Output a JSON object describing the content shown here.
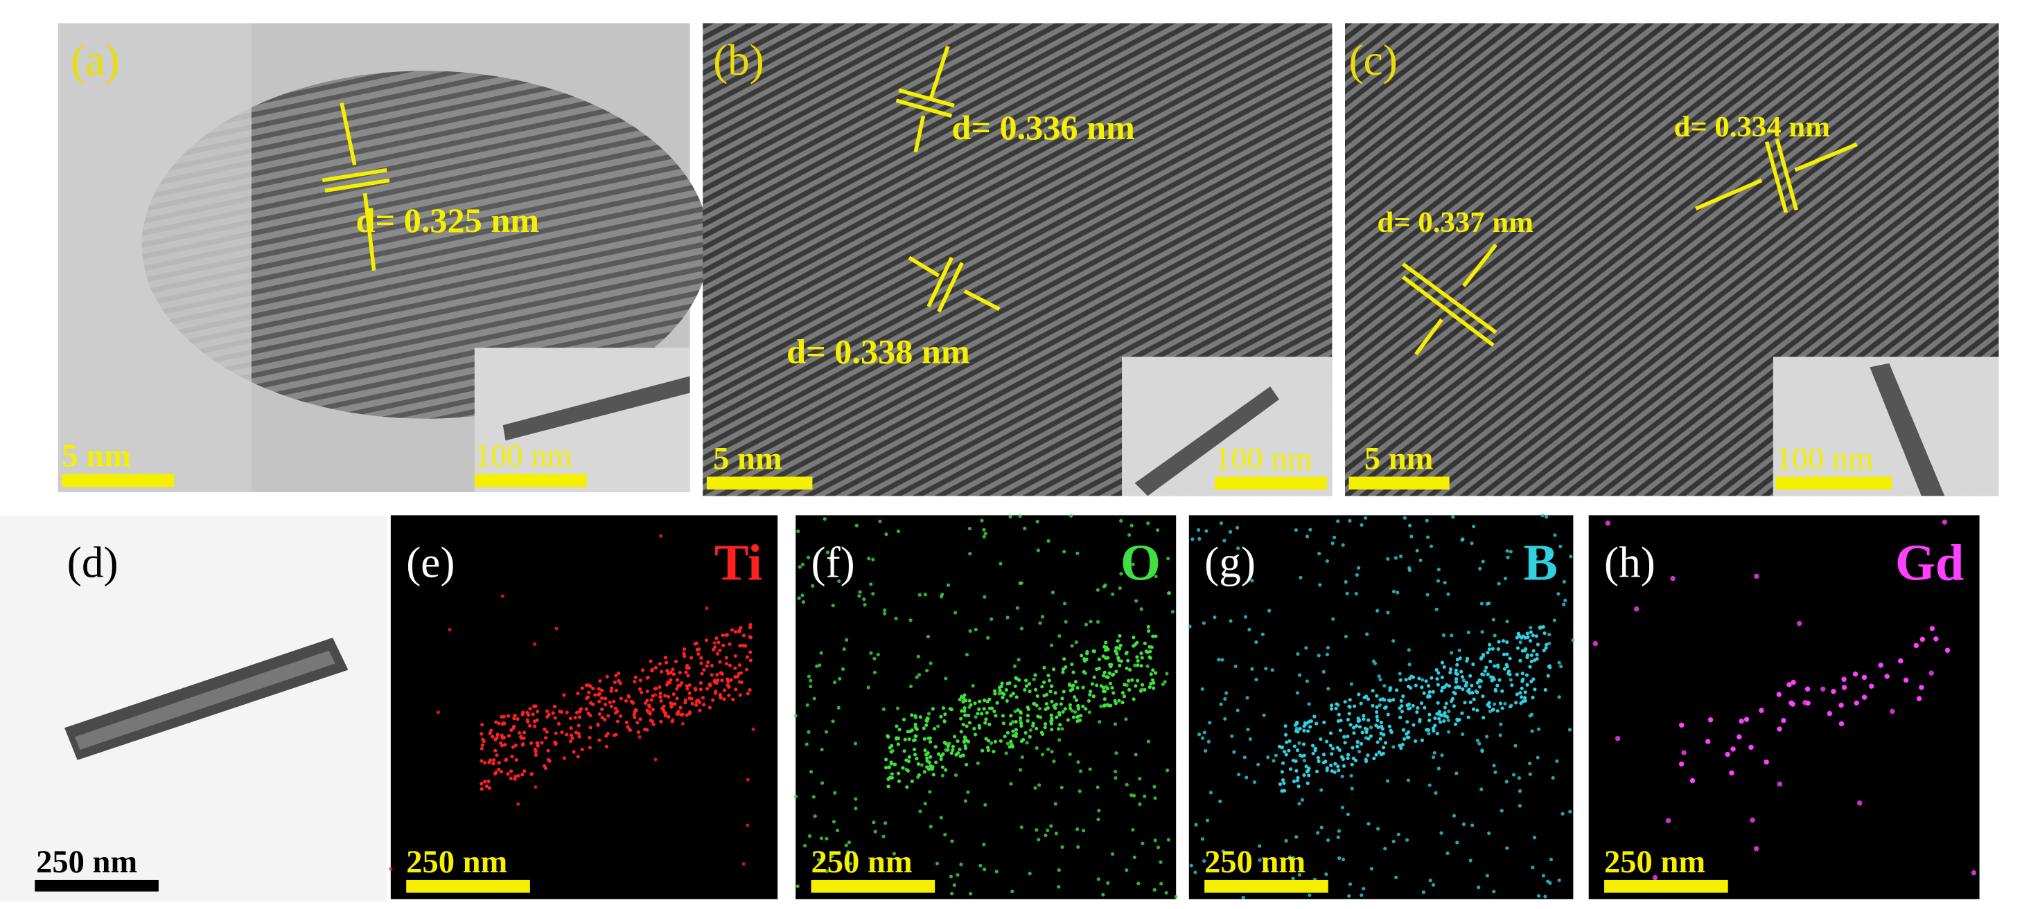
{
  "panels": [
    {
      "label": "(a)",
      "scale_bar": "5 nm",
      "inset_scale_bar": "100 nm",
      "annotations": [
        "d= 0.325 nm"
      ]
    },
    {
      "label": "(b)",
      "scale_bar": "5 nm",
      "inset_scale_bar": "100 nm",
      "annotations": [
        "d= 0.336 nm",
        "d= 0.338 nm"
      ]
    },
    {
      "label": "(c)",
      "scale_bar": "5 nm",
      "inset_scale_bar": "100 nm",
      "annotations": [
        "d= 0.337 nm",
        "d= 0.334 nm"
      ]
    },
    {
      "label": "(d)",
      "scale_bar": "250 nm"
    },
    {
      "label": "(e)",
      "element": "Ti",
      "scale_bar": "250 nm"
    },
    {
      "label": "(f)",
      "element": "O",
      "scale_bar": "250 nm"
    },
    {
      "label": "(g)",
      "element": "B",
      "scale_bar": "250 nm"
    },
    {
      "label": "(h)",
      "element": "Gd",
      "scale_bar": "250 nm"
    }
  ]
}
